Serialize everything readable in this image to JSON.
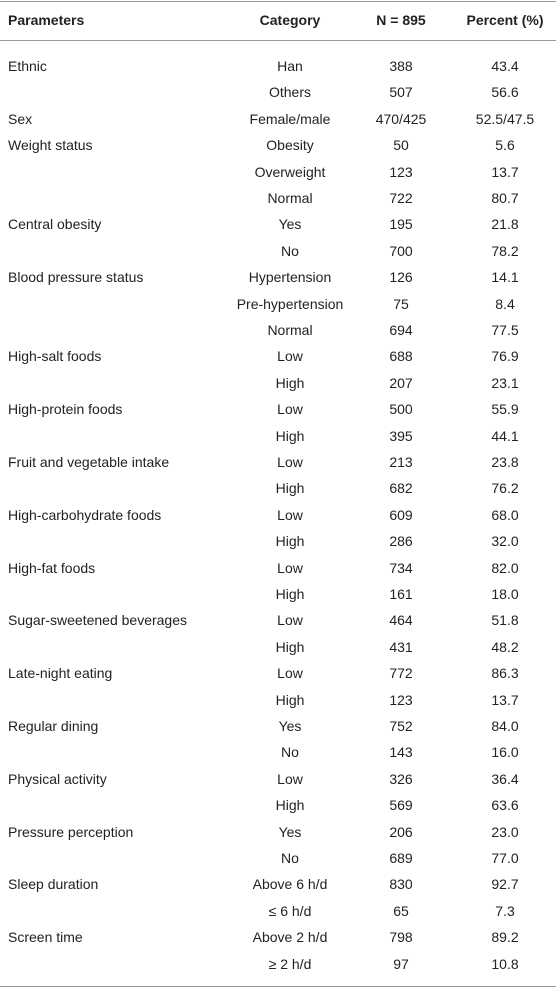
{
  "table": {
    "header": [
      "Parameters",
      "Category",
      "N = 895",
      "Percent (%)"
    ],
    "rows": [
      [
        "Ethnic",
        "Han",
        "388",
        "43.4"
      ],
      [
        null,
        "Others",
        "507",
        "56.6"
      ],
      [
        "Sex",
        "Female/male",
        "470/425",
        "52.5/47.5"
      ],
      [
        "Weight status",
        "Obesity",
        "50",
        "5.6"
      ],
      [
        null,
        "Overweight",
        "123",
        "13.7"
      ],
      [
        null,
        "Normal",
        "722",
        "80.7"
      ],
      [
        "Central obesity",
        "Yes",
        "195",
        "21.8"
      ],
      [
        null,
        "No",
        "700",
        "78.2"
      ],
      [
        "Blood pressure status",
        "Hypertension",
        "126",
        "14.1"
      ],
      [
        null,
        "Pre-hypertension",
        "75",
        "8.4"
      ],
      [
        null,
        "Normal",
        "694",
        "77.5"
      ],
      [
        "High-salt foods",
        "Low",
        "688",
        "76.9"
      ],
      [
        null,
        "High",
        "207",
        "23.1"
      ],
      [
        "High-protein foods",
        "Low",
        "500",
        "55.9"
      ],
      [
        null,
        "High",
        "395",
        "44.1"
      ],
      [
        "Fruit and vegetable intake",
        "Low",
        "213",
        "23.8"
      ],
      [
        null,
        "High",
        "682",
        "76.2"
      ],
      [
        "High-carbohydrate foods",
        "Low",
        "609",
        "68.0"
      ],
      [
        null,
        "High",
        "286",
        "32.0"
      ],
      [
        "High-fat foods",
        "Low",
        "734",
        "82.0"
      ],
      [
        null,
        "High",
        "161",
        "18.0"
      ],
      [
        "Sugar-sweetened beverages",
        "Low",
        "464",
        "51.8"
      ],
      [
        null,
        "High",
        "431",
        "48.2"
      ],
      [
        "Late-night eating",
        "Low",
        "772",
        "86.3"
      ],
      [
        null,
        "High",
        "123",
        "13.7"
      ],
      [
        "Regular dining",
        "Yes",
        "752",
        "84.0"
      ],
      [
        null,
        "No",
        "143",
        "16.0"
      ],
      [
        "Physical activity",
        "Low",
        "326",
        "36.4"
      ],
      [
        null,
        "High",
        "569",
        "63.6"
      ],
      [
        "Pressure perception",
        "Yes",
        "206",
        "23.0"
      ],
      [
        null,
        "No",
        "689",
        "77.0"
      ],
      [
        "Sleep duration",
        "Above 6 h/d",
        "830",
        "92.7"
      ],
      [
        null,
        "≤ 6 h/d",
        "65",
        "7.3"
      ],
      [
        "Screen time",
        "Above 2 h/d",
        "798",
        "89.2"
      ],
      [
        null,
        "≥ 2 h/d",
        "97",
        "10.8"
      ]
    ]
  }
}
